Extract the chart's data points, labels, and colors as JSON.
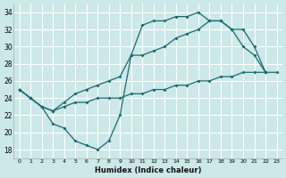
{
  "xlabel": "Humidex (Indice chaleur)",
  "background_color": "#cce8e8",
  "grid_color": "#ffffff",
  "line_color": "#1a6b6b",
  "xlim": [
    -0.5,
    23.5
  ],
  "ylim": [
    17,
    35
  ],
  "yticks": [
    18,
    20,
    22,
    24,
    26,
    28,
    30,
    32,
    34
  ],
  "xticks": [
    0,
    1,
    2,
    3,
    4,
    5,
    6,
    7,
    8,
    9,
    10,
    11,
    12,
    13,
    14,
    15,
    16,
    17,
    18,
    19,
    20,
    21,
    22,
    23
  ],
  "line1_x": [
    0,
    1,
    2,
    3,
    4,
    5,
    6,
    7,
    8,
    9,
    10,
    11,
    12,
    13,
    14,
    15,
    16,
    17,
    18,
    19,
    20,
    21,
    22
  ],
  "line1_y": [
    25,
    24,
    23,
    21,
    20.5,
    19,
    18.5,
    18,
    19,
    22,
    29,
    32.5,
    33,
    33,
    33.5,
    33.5,
    34,
    33,
    33,
    32,
    30,
    29,
    27
  ],
  "line2_x": [
    0,
    1,
    2,
    3,
    4,
    5,
    6,
    7,
    8,
    9,
    10,
    11,
    12,
    13,
    14,
    15,
    16,
    17,
    18,
    19,
    20,
    21,
    22
  ],
  "line2_y": [
    25,
    24,
    23,
    22.5,
    23.5,
    24.5,
    25,
    25.5,
    26,
    26.5,
    29,
    29,
    29.5,
    30,
    31,
    31.5,
    32,
    33,
    33,
    32,
    32,
    30,
    27
  ],
  "line3_x": [
    0,
    1,
    2,
    3,
    4,
    5,
    6,
    7,
    8,
    9,
    10,
    11,
    12,
    13,
    14,
    15,
    16,
    17,
    18,
    19,
    20,
    21,
    22,
    23
  ],
  "line3_y": [
    25,
    24,
    23,
    22.5,
    23,
    23.5,
    23.5,
    24,
    24,
    24,
    24.5,
    24.5,
    25,
    25,
    25.5,
    25.5,
    26,
    26,
    26.5,
    26.5,
    27,
    27,
    27,
    27
  ]
}
